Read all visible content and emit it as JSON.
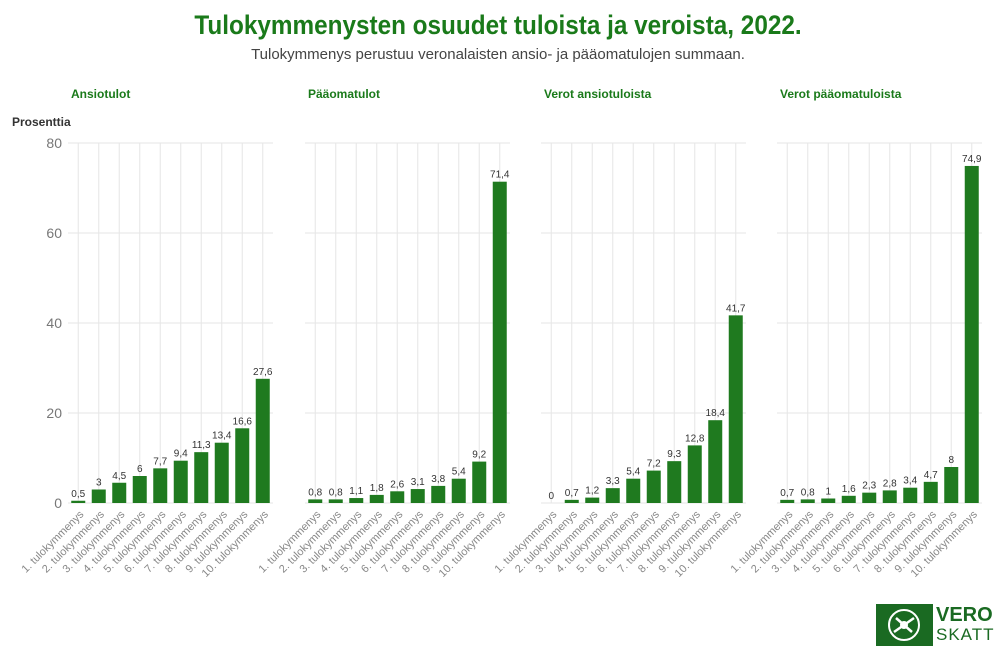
{
  "title": "Tulokymmenysten osuudet tuloista ja veroista, 2022.",
  "subtitle": "Tulokymmenys perustuu veronalaisten ansio- ja pääomatulojen summaan.",
  "logo": {
    "top": "VERO",
    "bottom": "SKATT",
    "icon": "vero-emblem-icon"
  },
  "colors": {
    "title": "#1a7a1a",
    "bar": "#1f7a1f"
  },
  "chart_data": {
    "type": "bar",
    "ylabel": "Prosenttia",
    "ylim": [
      0,
      80
    ],
    "yticks": [
      0,
      20,
      40,
      60,
      80
    ],
    "grid": true,
    "categories": [
      "1. tulokymmenys",
      "2. tulokymmenys",
      "3. tulokymmenys",
      "4. tulokymmenys",
      "5. tulokymmenys",
      "6. tulokymmenys",
      "7. tulokymmenys",
      "8. tulokymmenys",
      "9. tulokymmenys",
      "10. tulokymmenys"
    ],
    "panels": [
      {
        "title": "Ansiotulot",
        "values": [
          0.5,
          3,
          4.5,
          6,
          7.7,
          9.4,
          11.3,
          13.4,
          16.6,
          27.6
        ]
      },
      {
        "title": "Pääomatulot",
        "values": [
          0.8,
          0.8,
          1.1,
          1.8,
          2.6,
          3.1,
          3.8,
          5.4,
          9.2,
          71.4
        ]
      },
      {
        "title": "Verot ansiotuloista",
        "values": [
          0,
          0.7,
          1.2,
          3.3,
          5.4,
          7.2,
          9.3,
          12.8,
          18.4,
          41.7
        ]
      },
      {
        "title": "Verot pääomatuloista",
        "values": [
          0.7,
          0.8,
          1,
          1.6,
          2.3,
          2.8,
          3.4,
          4.7,
          8,
          74.9
        ]
      }
    ]
  }
}
